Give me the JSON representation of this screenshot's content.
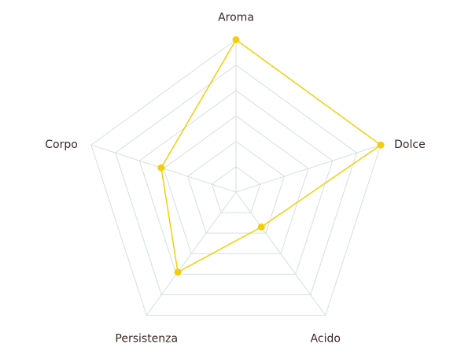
{
  "chart_data": {
    "type": "radar",
    "categories": [
      "Aroma",
      "Dolce",
      "Acido",
      "Persistenza",
      "Corpo"
    ],
    "values": [
      6,
      6,
      1.7,
      3.9,
      3.1
    ],
    "color": "#f2cf0a",
    "grid_color": "#d5dfe0",
    "rlim": [
      0,
      6
    ],
    "rticks": [
      1,
      2,
      3,
      4,
      5,
      6
    ]
  }
}
